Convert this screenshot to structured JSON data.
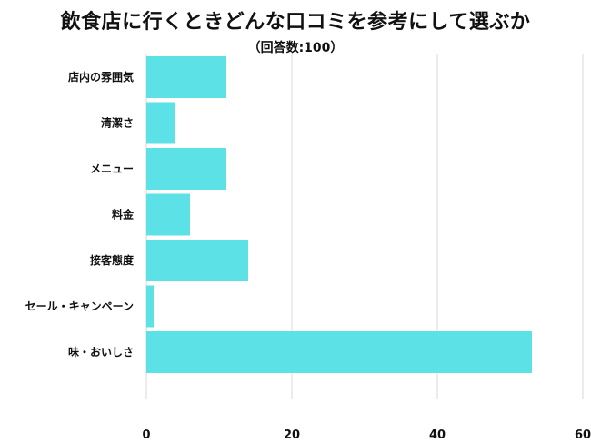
{
  "chart_data": {
    "type": "bar",
    "orientation": "horizontal",
    "title": "飲食店に行くときどんな口コミを参考にして選ぶか",
    "subtitle": "（回答数:100）",
    "categories": [
      "店内の雰囲気",
      "清潔さ",
      "メニュー",
      "料金",
      "接客態度",
      "セール・キャンペーン",
      "味・おいしさ"
    ],
    "values": [
      11,
      4,
      11,
      6,
      14,
      1,
      53
    ],
    "xlim": [
      0,
      60
    ],
    "xticks": [
      0,
      20,
      40,
      60
    ],
    "grid": true,
    "bar_color": "#5ce1e6",
    "grid_color": "#d9d9d9"
  }
}
